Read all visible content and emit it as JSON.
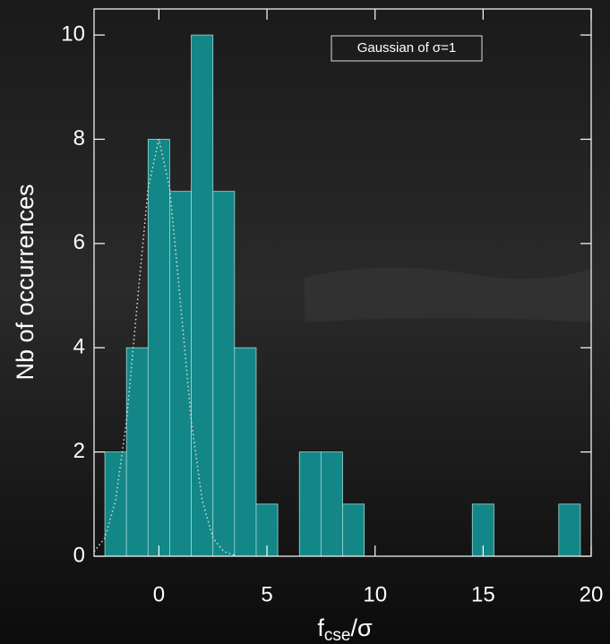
{
  "chart_data": {
    "type": "histogram",
    "x_label": [
      "f",
      "cse",
      "/σ"
    ],
    "y_label": "Nb of occurrences",
    "bins": [
      -2.5,
      -1.5,
      -0.5,
      0.5,
      1.5,
      2.5,
      3.5,
      4.5,
      5.5,
      6.5,
      7.5,
      8.5,
      9.5,
      10.5,
      11.5,
      12.5,
      13.5,
      14.5,
      15.5,
      16.5,
      17.5,
      18.5,
      19.5
    ],
    "counts": [
      2,
      4,
      8,
      7,
      10,
      7,
      4,
      1,
      0,
      2,
      2,
      1,
      0,
      0,
      0,
      0,
      0,
      1,
      0,
      0,
      0,
      1
    ],
    "color": "#138787",
    "curve": {
      "name": "Gaussian of  σ=1",
      "x": [
        -3,
        -2.5,
        -2,
        -1.5,
        -1,
        -0.5,
        0,
        0.5,
        1,
        1.5,
        2,
        2.5,
        3,
        3.5
      ],
      "values": [
        0.09,
        0.35,
        1.08,
        2.59,
        4.85,
        7.06,
        8,
        7.06,
        4.85,
        2.59,
        1.08,
        0.35,
        0.09,
        0.02
      ],
      "color": "#dddddd"
    },
    "xlim": [
      -3,
      20
    ],
    "ylim": [
      0,
      10.5
    ],
    "xticks": [
      0,
      5,
      10,
      15,
      20
    ],
    "yticks": [
      0,
      2,
      4,
      6,
      8,
      10
    ]
  }
}
